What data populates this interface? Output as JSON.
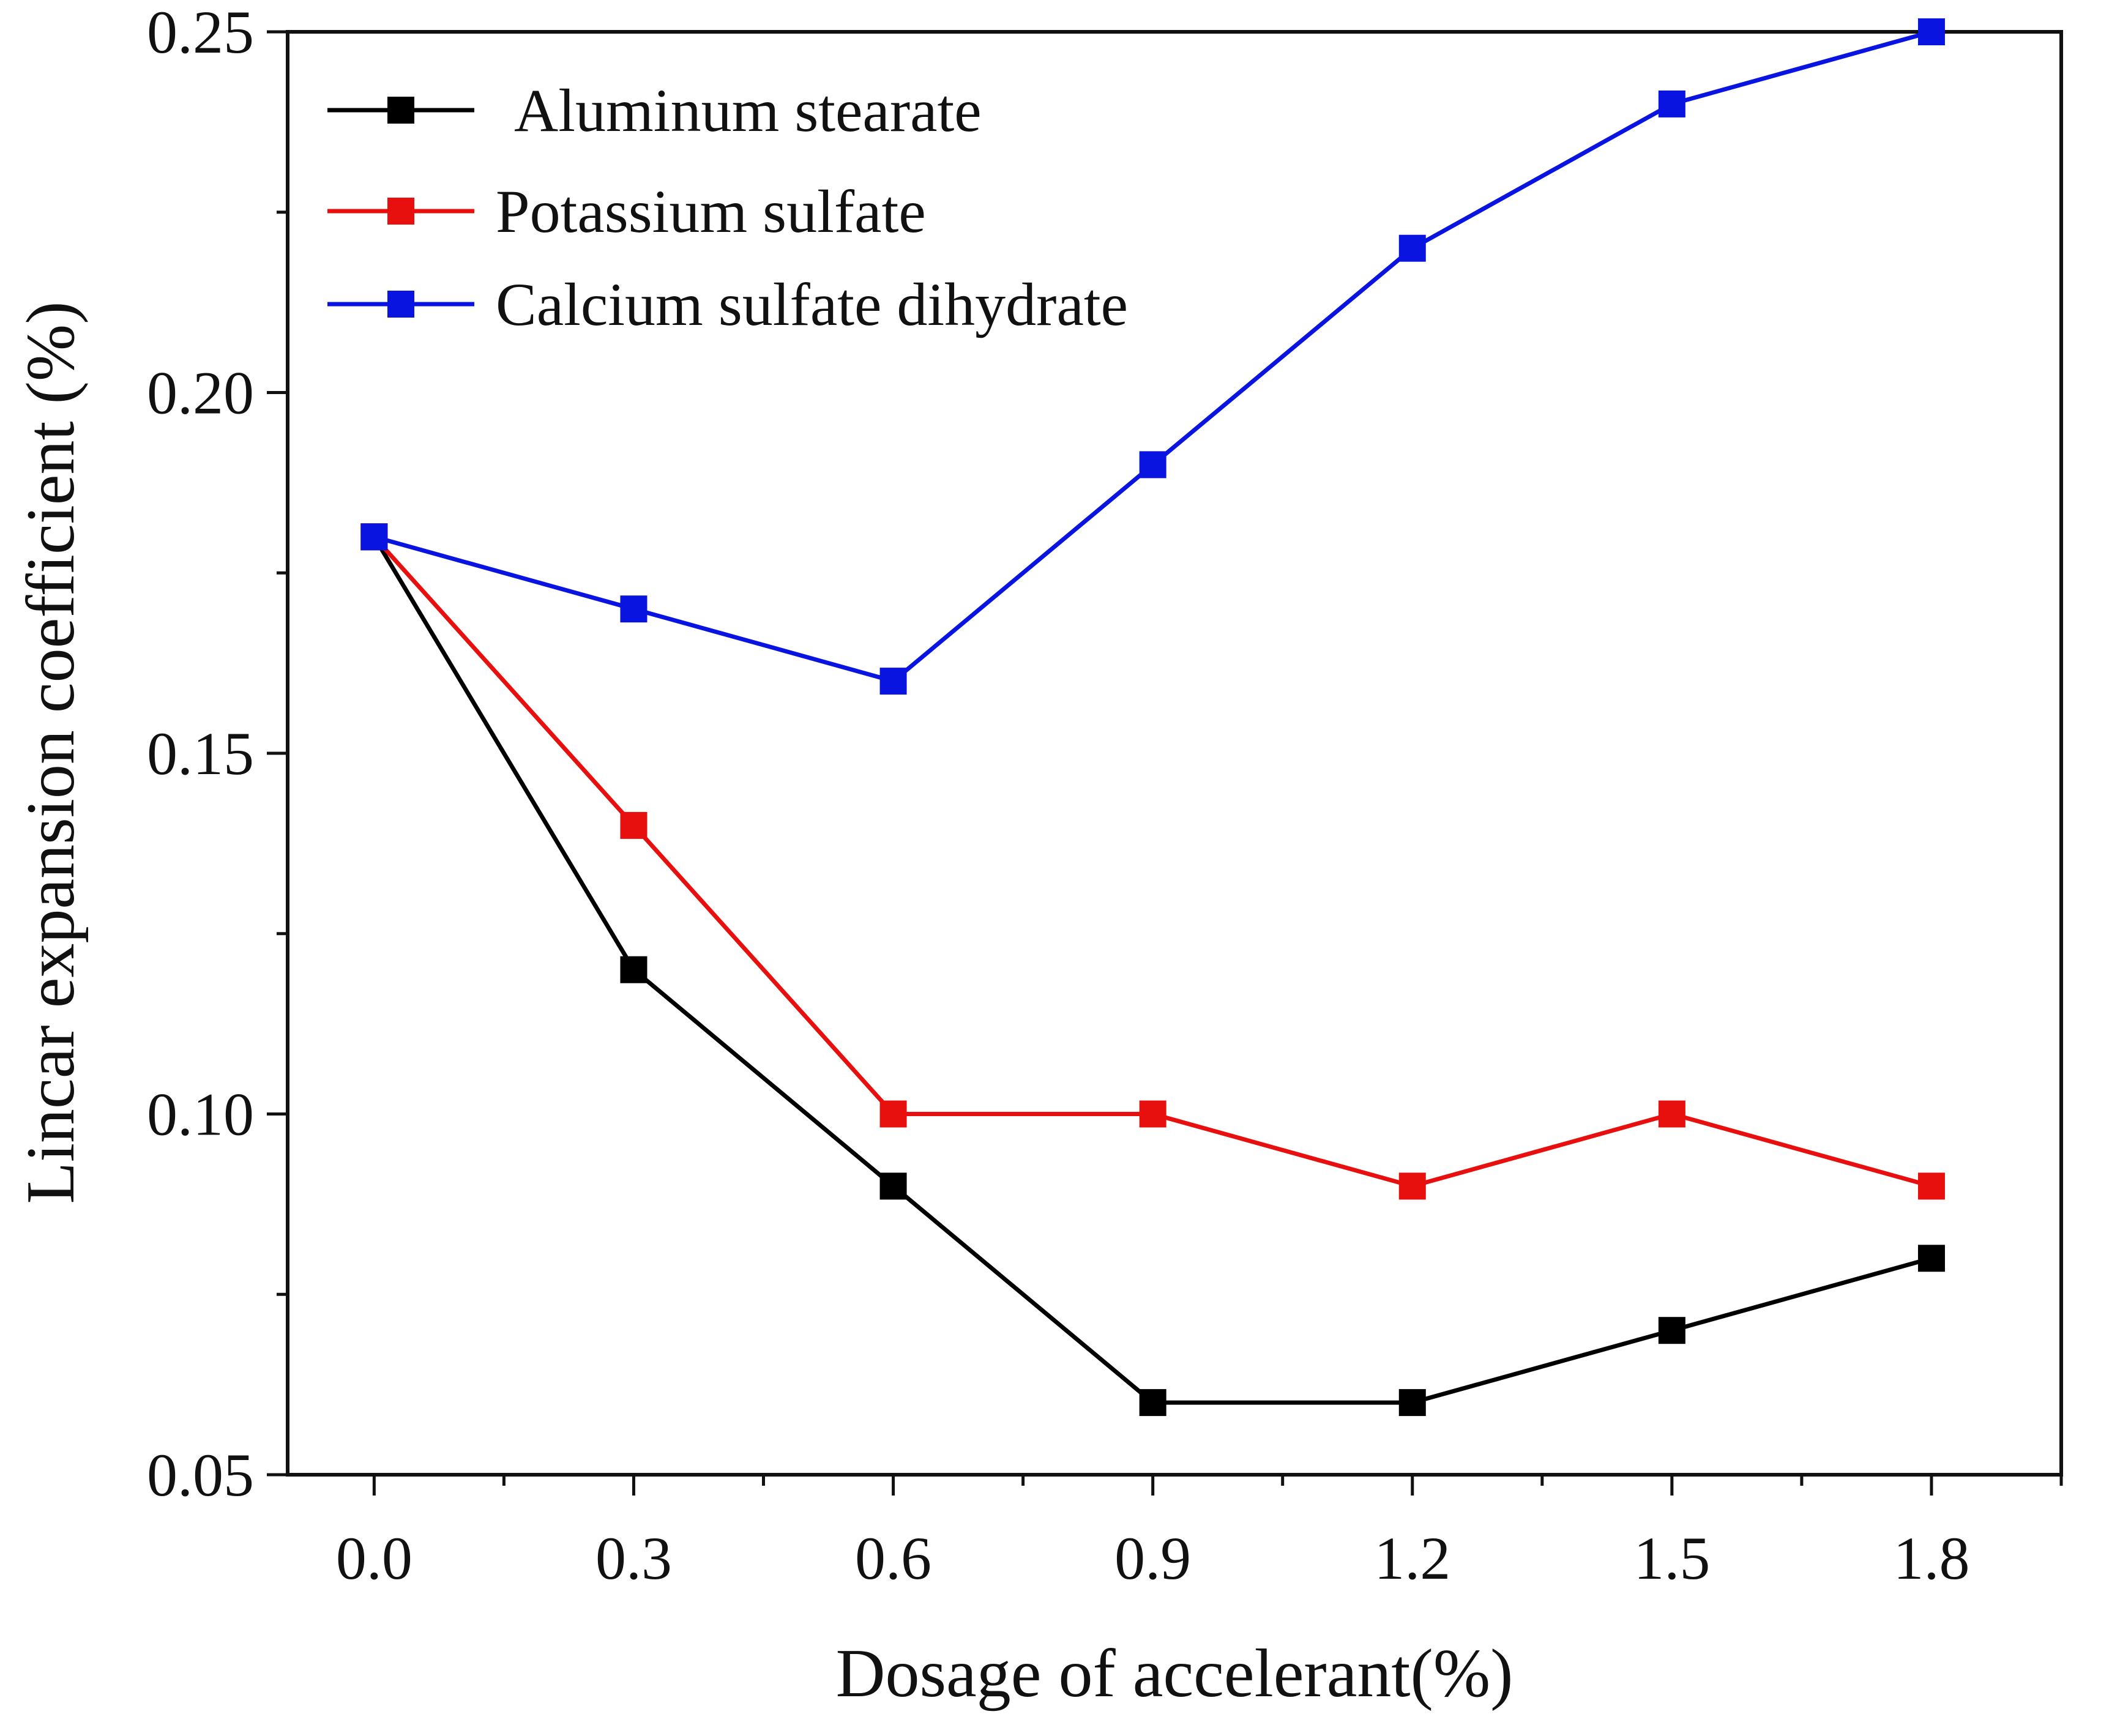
{
  "chart_data": {
    "type": "line",
    "title": "",
    "xlabel": "Dosage of  accelerant(%)",
    "ylabel": "Lincar expansion coefficient (%)",
    "x": [
      0.0,
      0.3,
      0.6,
      0.9,
      1.2,
      1.5,
      1.8
    ],
    "x_tick_labels": [
      "0.0",
      "0.3",
      "0.6",
      "0.9",
      "1.2",
      "1.5",
      "1.8"
    ],
    "xlim": [
      -0.1,
      1.95
    ],
    "ylim": [
      0.05,
      0.25
    ],
    "y_ticks": [
      0.05,
      0.1,
      0.15,
      0.2,
      0.25
    ],
    "y_tick_labels": [
      "0.05",
      "0.10",
      "0.15",
      "0.20",
      "0.25"
    ],
    "grid": false,
    "legend_position": "top-left",
    "series": [
      {
        "name": "Aluminum stearate",
        "color": "#000000",
        "marker": "square",
        "values": [
          0.18,
          0.12,
          0.09,
          0.06,
          0.06,
          0.07,
          0.08
        ]
      },
      {
        "name": "Potassium sulfate",
        "color": "#e8100f",
        "marker": "square",
        "values": [
          0.18,
          0.14,
          0.1,
          0.1,
          0.09,
          0.1,
          0.09
        ]
      },
      {
        "name": "Calcium sulfate dihydrate",
        "color": "#0a14e0",
        "marker": "square",
        "values": [
          0.18,
          0.17,
          0.16,
          0.19,
          0.22,
          0.24,
          0.25
        ]
      }
    ]
  }
}
